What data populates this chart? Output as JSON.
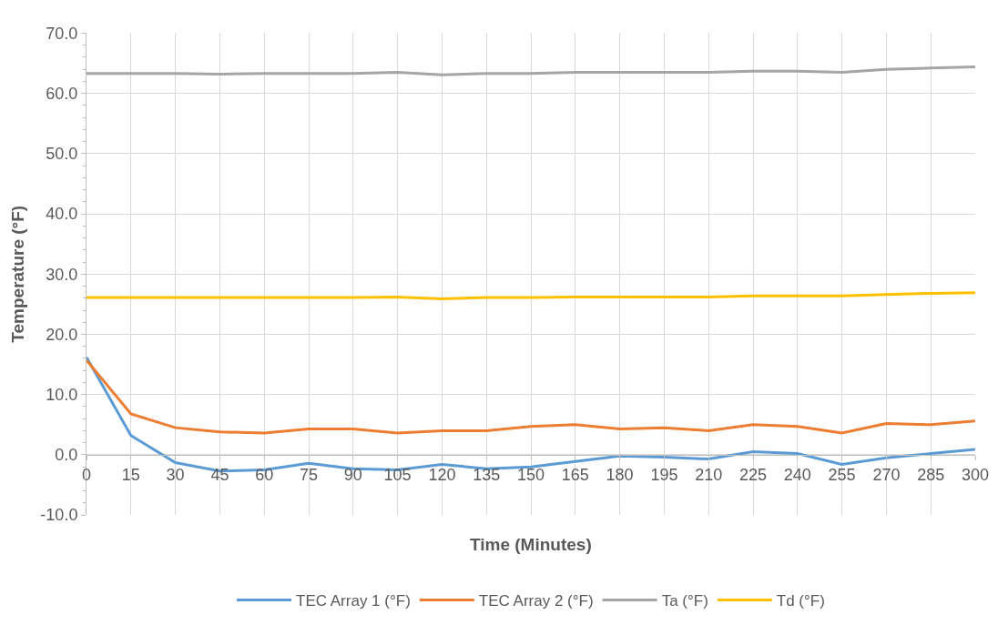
{
  "chart_data": {
    "type": "line",
    "xlabel": "Time (Minutes)",
    "ylabel": "Temperature (°F)",
    "x": [
      0,
      15,
      30,
      45,
      60,
      75,
      90,
      105,
      120,
      135,
      150,
      165,
      180,
      195,
      210,
      225,
      240,
      255,
      270,
      285,
      300
    ],
    "series": [
      {
        "name": "TEC Array 1 (°F)",
        "color": "#5b9bd5",
        "values": [
          16.2,
          3.2,
          -1.3,
          -2.7,
          -2.5,
          -1.4,
          -2.3,
          -2.5,
          -1.6,
          -2.3,
          -2.0,
          -1.1,
          -0.2,
          -0.4,
          -0.7,
          0.5,
          0.2,
          -1.6,
          -0.5,
          0.2,
          0.9
        ]
      },
      {
        "name": "TEC Array 2 (°F)",
        "color": "#ed7d31",
        "values": [
          15.7,
          6.8,
          4.5,
          3.8,
          3.6,
          4.3,
          4.3,
          3.6,
          4.0,
          4.0,
          4.7,
          5.0,
          4.3,
          4.5,
          4.0,
          5.0,
          4.7,
          3.6,
          5.2,
          5.0,
          5.6
        ]
      },
      {
        "name": "Ta (°F)",
        "color": "#a5a5a5",
        "values": [
          63.3,
          63.3,
          63.3,
          63.2,
          63.3,
          63.3,
          63.3,
          63.5,
          63.1,
          63.3,
          63.3,
          63.5,
          63.5,
          63.5,
          63.5,
          63.7,
          63.7,
          63.5,
          64.0,
          64.2,
          64.4
        ]
      },
      {
        "name": "Td (°F)",
        "color": "#ffc000",
        "values": [
          26.1,
          26.1,
          26.1,
          26.1,
          26.1,
          26.1,
          26.1,
          26.2,
          25.9,
          26.1,
          26.1,
          26.2,
          26.2,
          26.2,
          26.2,
          26.4,
          26.4,
          26.4,
          26.6,
          26.8,
          26.9
        ]
      }
    ],
    "xlim": [
      0,
      300
    ],
    "xticks": [
      0,
      15,
      30,
      45,
      60,
      75,
      90,
      105,
      120,
      135,
      150,
      165,
      180,
      195,
      210,
      225,
      240,
      255,
      270,
      285,
      300
    ],
    "ylim": [
      -10,
      70
    ],
    "yticks": [
      {
        "value": -10,
        "label": "-10.0"
      },
      {
        "value": 0,
        "label": "0.0"
      },
      {
        "value": 10,
        "label": "10.0"
      },
      {
        "value": 20,
        "label": "20.0"
      },
      {
        "value": 30,
        "label": "30.0"
      },
      {
        "value": 40,
        "label": "40.0"
      },
      {
        "value": 50,
        "label": "50.0"
      },
      {
        "value": 60,
        "label": "60.0"
      },
      {
        "value": 70,
        "label": "70.0"
      }
    ],
    "grid": true,
    "legend": "bottom",
    "marker": "none",
    "line_style": "solid"
  }
}
